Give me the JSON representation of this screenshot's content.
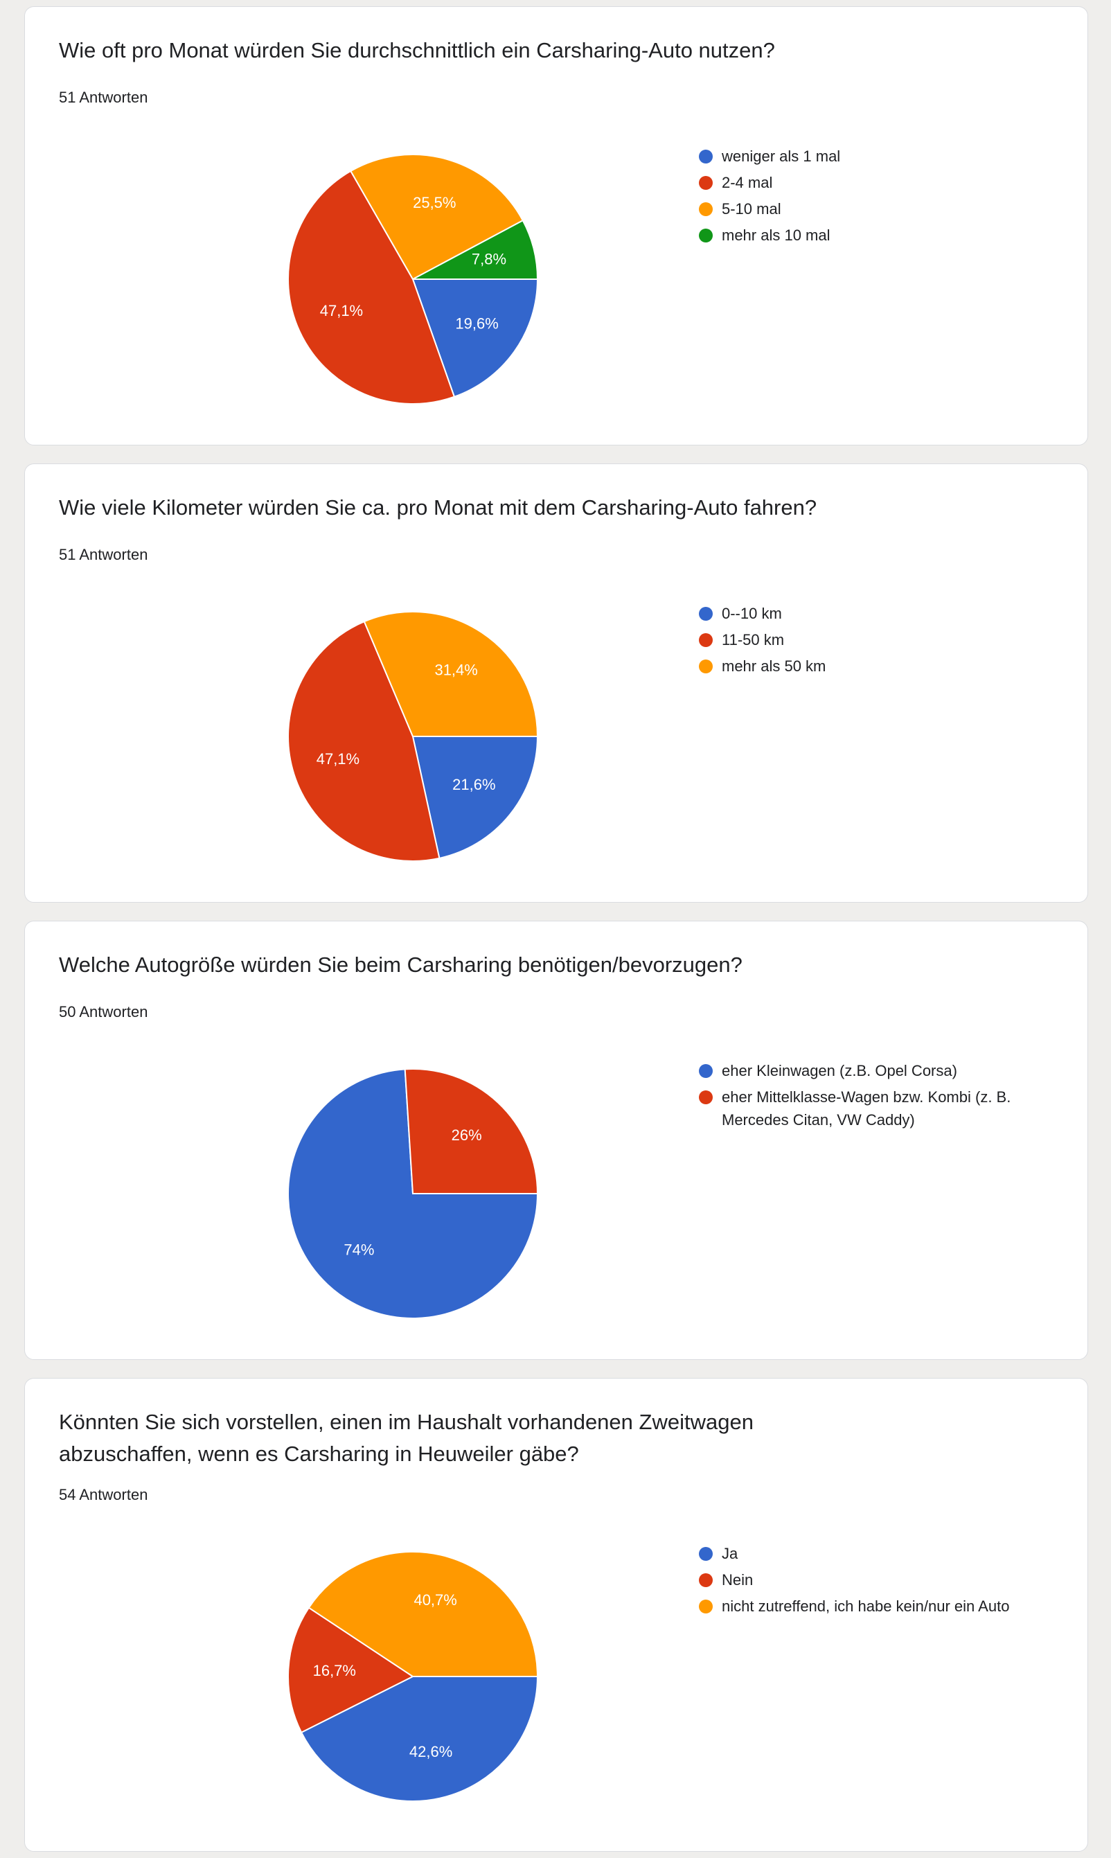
{
  "chart_data": [
    {
      "type": "pie",
      "title": "Wie oft pro Monat würden Sie durchschnittlich ein Carsharing-Auto nutzen?",
      "subtitle": "51 Antworten",
      "slices": [
        {
          "label": "weniger als 1 mal",
          "value": 19.6,
          "display": "19,6%",
          "color": "#3366cc"
        },
        {
          "label": "2-4 mal",
          "value": 47.1,
          "display": "47,1%",
          "color": "#dc3912"
        },
        {
          "label": "5-10 mal",
          "value": 25.5,
          "display": "25,5%",
          "color": "#ff9900"
        },
        {
          "label": "mehr als 10 mal",
          "value": 7.8,
          "display": "7,8%",
          "color": "#109618"
        }
      ]
    },
    {
      "type": "pie",
      "title": "Wie viele Kilometer würden Sie ca. pro Monat mit dem Carsharing-Auto fahren?",
      "subtitle": "51 Antworten",
      "slices": [
        {
          "label": "0--10 km",
          "value": 21.6,
          "display": "21,6%",
          "color": "#3366cc"
        },
        {
          "label": "11-50 km",
          "value": 47.1,
          "display": "47,1%",
          "color": "#dc3912"
        },
        {
          "label": "mehr als 50 km",
          "value": 31.4,
          "display": "31,4%",
          "color": "#ff9900"
        }
      ]
    },
    {
      "type": "pie",
      "title": "Welche Autogröße würden Sie beim Carsharing benötigen/bevorzugen?",
      "subtitle": "50 Antworten",
      "slices": [
        {
          "label": "eher Kleinwagen (z.B. Opel Corsa)",
          "value": 74,
          "display": "74%",
          "color": "#3366cc"
        },
        {
          "label": "eher Mittelklasse-Wagen bzw. Kombi (z. B. Mercedes Citan, VW Caddy)",
          "value": 26,
          "display": "26%",
          "color": "#dc3912"
        }
      ]
    },
    {
      "type": "pie",
      "title": "Könnten Sie sich vorstellen, einen im Haushalt vorhandenen Zweitwagen abzuschaffen, wenn es Carsharing in Heuweiler gäbe?",
      "subtitle": "54 Antworten",
      "slices": [
        {
          "label": "Ja",
          "value": 42.6,
          "display": "42,6%",
          "color": "#3366cc"
        },
        {
          "label": "Nein",
          "value": 16.7,
          "display": "16,7%",
          "color": "#dc3912"
        },
        {
          "label": "nicht zutreffend, ich habe kein/nur ein Auto",
          "value": 40.7,
          "display": "40,7%",
          "color": "#ff9900"
        }
      ]
    }
  ]
}
